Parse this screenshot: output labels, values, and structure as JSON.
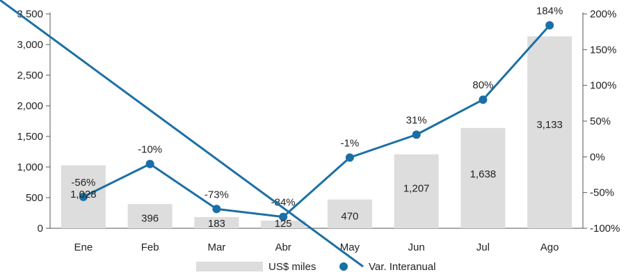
{
  "chart_data": {
    "type": "bar",
    "categories": [
      "Ene",
      "Feb",
      "Mar",
      "Abr",
      "May",
      "Jun",
      "Jul",
      "Ago"
    ],
    "series": [
      {
        "name": "US$ miles",
        "type": "bar",
        "axis": "left",
        "values": [
          1028,
          396,
          183,
          125,
          470,
          1207,
          1638,
          3133
        ],
        "labels": [
          "1,028",
          "396",
          "183",
          "125",
          "470",
          "1,207",
          "1,638",
          "3,133"
        ]
      },
      {
        "name": "Var. Interanual",
        "type": "line",
        "axis": "right",
        "values": [
          -56,
          -10,
          -73,
          -84,
          -1,
          31,
          80,
          184
        ],
        "labels": [
          "-56%",
          "-10%",
          "-73%",
          "-84%",
          "-1%",
          "31%",
          "80%",
          "184%"
        ]
      }
    ],
    "y_left": {
      "ylim": [
        0,
        3500
      ],
      "ticks": [
        0,
        500,
        1000,
        1500,
        2000,
        2500,
        3000,
        3500
      ],
      "tick_labels": [
        "0",
        "500",
        "1,000",
        "1,500",
        "2,000",
        "2,500",
        "3,000",
        "3,500"
      ]
    },
    "y_right": {
      "ylim": [
        -100,
        200
      ],
      "ticks": [
        -100,
        -50,
        0,
        50,
        100,
        150,
        200
      ],
      "tick_labels": [
        "-100%",
        "-50%",
        "0%",
        "50%",
        "100%",
        "150%",
        "200%"
      ]
    },
    "grid": false,
    "legend_position": "bottom",
    "colors": {
      "bar": "#dddddd",
      "line": "#1a6fa6",
      "axis": "#555555"
    }
  }
}
